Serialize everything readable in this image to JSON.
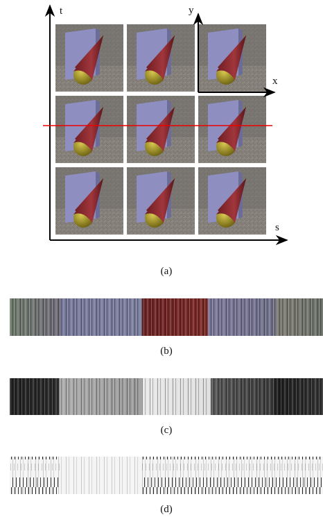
{
  "figure": {
    "axes": {
      "t": "t",
      "y": "y",
      "x": "x",
      "s": "s"
    },
    "captions": [
      "(a)",
      "(b)",
      "(c)",
      "(d)"
    ]
  }
}
